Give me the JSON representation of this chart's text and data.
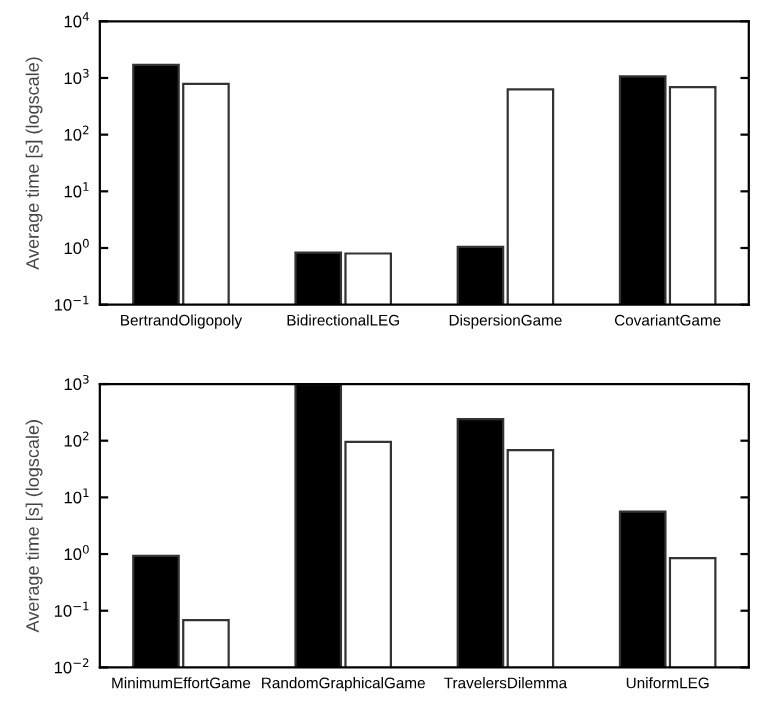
{
  "chart_data": [
    {
      "type": "bar",
      "ylabel": "Average time [s] (logscale)",
      "log": true,
      "grid": false,
      "categories": [
        "BertrandOligopoly",
        "BidirectionalLEG",
        "DispersionGame",
        "CovariantGame"
      ],
      "series": [
        {
          "color": "#000000",
          "values": [
            1700,
            0.83,
            1.05,
            1070
          ]
        },
        {
          "color": "#ffffff",
          "values": [
            790,
            0.8,
            630,
            690
          ]
        }
      ],
      "ylim": [
        0.1,
        10000
      ],
      "yticks": [
        {
          "value": 0.1,
          "label": "10$^{−1}$"
        },
        {
          "value": 1,
          "label": "10$^{0}$"
        },
        {
          "value": 10,
          "label": "10$^{1}$"
        },
        {
          "value": 100,
          "label": "10$^{2}$"
        },
        {
          "value": 1000,
          "label": "10$^{3}$"
        },
        {
          "value": 10000,
          "label": "10$^{4}$"
        }
      ]
    },
    {
      "type": "bar",
      "ylabel": "Average time [s] (logscale)",
      "log": true,
      "grid": false,
      "categories": [
        "MinimumEffortGame",
        "RandomGraphicalGame",
        "TravelersDilemma",
        "UniformLEG"
      ],
      "series": [
        {
          "color": "#000000",
          "values": [
            0.93,
            1000,
            240,
            5.6
          ]
        },
        {
          "color": "#ffffff",
          "values": [
            0.068,
            95,
            68,
            0.85
          ]
        }
      ],
      "ylim": [
        0.01,
        1000
      ],
      "yticks": [
        {
          "value": 0.01,
          "label": "10$^{−2}$"
        },
        {
          "value": 0.1,
          "label": "10$^{−1}$"
        },
        {
          "value": 1,
          "label": "10$^{0}$"
        },
        {
          "value": 10,
          "label": "10$^{1}$"
        },
        {
          "value": 100,
          "label": "10$^{2}$"
        },
        {
          "value": 1000,
          "label": "10$^{3}$"
        }
      ]
    }
  ]
}
